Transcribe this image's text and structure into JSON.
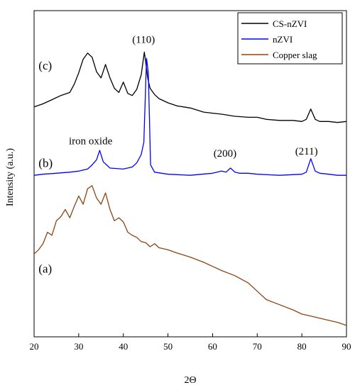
{
  "chart_data": {
    "type": "line",
    "xlabel": "2Θ",
    "ylabel": "Intensity (a.u.)",
    "xlim": [
      20,
      90
    ],
    "xticks": [
      "20",
      "30",
      "40",
      "50",
      "60",
      "70",
      "80",
      "90"
    ],
    "yticks_shown": false,
    "grid": false,
    "legend_position": "top-right",
    "series": [
      {
        "name": "CS-nZVI",
        "panel": "(c)",
        "color": "#000000",
        "x": [
          20,
          22,
          24,
          26,
          28,
          29,
          30,
          31,
          32,
          33,
          34,
          35,
          36,
          37,
          38,
          39,
          40,
          41,
          42,
          43,
          44,
          44.7,
          45.5,
          46,
          47,
          48,
          50,
          52,
          55,
          58,
          60,
          62,
          65,
          68,
          70,
          72,
          75,
          78,
          80,
          81,
          82,
          83,
          84,
          86,
          88,
          90
        ],
        "y": [
          10.2,
          10.5,
          10.9,
          11.3,
          11.6,
          12.4,
          13.5,
          14.8,
          15.4,
          15.0,
          13.6,
          13.0,
          14.3,
          13.0,
          12.0,
          11.6,
          12.6,
          11.5,
          11.3,
          11.9,
          13.3,
          15.5,
          12.9,
          12.0,
          11.4,
          11.0,
          10.6,
          10.3,
          10.1,
          9.7,
          9.6,
          9.5,
          9.3,
          9.2,
          9.2,
          9.0,
          8.9,
          8.9,
          8.8,
          9.0,
          10.0,
          9.0,
          8.8,
          8.8,
          8.7,
          8.8
        ]
      },
      {
        "name": "nZVI",
        "panel": "(b)",
        "color": "#0000ff",
        "x": [
          20,
          22,
          25,
          28,
          30,
          32,
          33,
          34,
          34.7,
          35.5,
          37,
          40,
          42,
          43,
          44,
          44.6,
          45.2,
          45.6,
          46.1,
          47,
          50,
          55,
          60,
          62,
          63,
          64,
          65,
          66,
          68,
          70,
          75,
          80,
          81,
          82,
          83,
          84,
          86,
          88,
          90
        ],
        "y": [
          3.6,
          3.7,
          3.8,
          3.9,
          4.0,
          4.2,
          4.6,
          5.1,
          6.0,
          4.9,
          4.3,
          4.2,
          4.4,
          4.8,
          5.6,
          6.8,
          14.9,
          13.5,
          4.6,
          3.9,
          3.7,
          3.6,
          3.8,
          4.0,
          3.9,
          4.3,
          3.9,
          3.8,
          3.8,
          3.7,
          3.6,
          3.7,
          3.9,
          5.2,
          4.0,
          3.8,
          3.7,
          3.6,
          3.6
        ]
      },
      {
        "name": "Copper slag",
        "panel": "(a)",
        "color": "#8b4513",
        "x": [
          20,
          21,
          22,
          23,
          24,
          25,
          26,
          27,
          28,
          29,
          30,
          31,
          32,
          33,
          34,
          35,
          36,
          37,
          38,
          39,
          40,
          41,
          42,
          43,
          44,
          45,
          46,
          47,
          48,
          50,
          52,
          55,
          58,
          60,
          62,
          65,
          68,
          70,
          72,
          75,
          78,
          80,
          82,
          85,
          88,
          90
        ],
        "y": [
          -4.0,
          -3.6,
          -3.0,
          -1.9,
          -2.2,
          -0.8,
          -0.4,
          0.3,
          -0.5,
          0.6,
          1.6,
          0.8,
          2.3,
          2.6,
          1.4,
          0.8,
          1.9,
          0.3,
          -0.8,
          -0.5,
          -0.9,
          -1.9,
          -2.2,
          -2.4,
          -2.8,
          -2.9,
          -3.3,
          -3.0,
          -3.4,
          -3.6,
          -3.9,
          -4.3,
          -4.8,
          -5.2,
          -5.6,
          -6.1,
          -6.8,
          -7.6,
          -8.4,
          -8.9,
          -9.4,
          -9.8,
          -10.0,
          -10.3,
          -10.6,
          -10.9
        ]
      }
    ],
    "annotations": [
      {
        "text": "(c)",
        "x": 21,
        "y": 13.8,
        "kind": "panel"
      },
      {
        "text": "(b)",
        "x": 21,
        "y": 4.4,
        "kind": "panel"
      },
      {
        "text": "(a)",
        "x": 21,
        "y": -5.8,
        "kind": "panel"
      },
      {
        "text": "iron oxide",
        "x": 27.8,
        "y": 6.6,
        "kind": "peak"
      },
      {
        "text": "(110)",
        "x": 42.0,
        "y": 16.4,
        "kind": "peak"
      },
      {
        "text": "(200)",
        "x": 60.2,
        "y": 5.4,
        "kind": "peak"
      },
      {
        "text": "(211)",
        "x": 78.5,
        "y": 5.6,
        "kind": "peak"
      }
    ],
    "ylim": [
      -12,
      19.5
    ]
  }
}
